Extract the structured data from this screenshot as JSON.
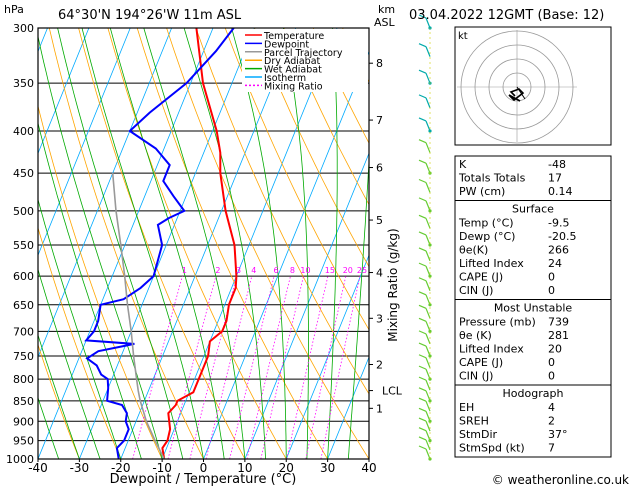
{
  "header": {
    "location": "64°30'N  194°26'W  11m  ASL",
    "date": "03.04.2022  12GMT  (Base: 12)",
    "hpa_label": "hPa",
    "km_label": "km",
    "asl_label": "ASL"
  },
  "legend": [
    {
      "label": "Temperature",
      "color": "#ff0000",
      "dash": ""
    },
    {
      "label": "Dewpoint",
      "color": "#0000ff",
      "dash": ""
    },
    {
      "label": "Parcel Trajectory",
      "color": "#999999",
      "dash": ""
    },
    {
      "label": "Dry Adiabat",
      "color": "#ffa500",
      "dash": ""
    },
    {
      "label": "Wet Adiabat",
      "color": "#00aa00",
      "dash": ""
    },
    {
      "label": "Isotherm",
      "color": "#00aaff",
      "dash": ""
    },
    {
      "label": "Mixing Ratio",
      "color": "#ff00ff",
      "dash": "2,2"
    }
  ],
  "chart_data": {
    "type": "line",
    "xlabel": "Dewpoint / Temperature (°C)",
    "ylabel": "Mixing Ratio (g/kg)",
    "x_ticks": [
      -40,
      -30,
      -20,
      -10,
      0,
      10,
      20,
      30,
      40
    ],
    "pressure_levels": [
      300,
      350,
      400,
      450,
      500,
      550,
      600,
      650,
      700,
      750,
      800,
      850,
      900,
      950,
      1000
    ],
    "km_ticks": [
      {
        "label": "8",
        "p": 331
      },
      {
        "label": "7",
        "p": 388
      },
      {
        "label": "6",
        "p": 443
      },
      {
        "label": "5",
        "p": 513
      },
      {
        "label": "4",
        "p": 594
      },
      {
        "label": "3",
        "p": 675
      },
      {
        "label": "2",
        "p": 768
      },
      {
        "label": "LCL",
        "p": 826
      },
      {
        "label": "1",
        "p": 868
      }
    ],
    "mixing_ratio_labels": [
      "1",
      "2",
      "3",
      "4",
      "6",
      "8",
      "10",
      "15",
      "20",
      "25"
    ],
    "series": [
      {
        "name": "Temperature",
        "color": "#ff0000",
        "points": [
          [
            1000,
            -9.5
          ],
          [
            970,
            -11
          ],
          [
            950,
            -10.5
          ],
          [
            920,
            -11
          ],
          [
            900,
            -12
          ],
          [
            880,
            -13
          ],
          [
            860,
            -12
          ],
          [
            850,
            -12
          ],
          [
            830,
            -9
          ],
          [
            800,
            -9
          ],
          [
            770,
            -9
          ],
          [
            750,
            -9
          ],
          [
            720,
            -10
          ],
          [
            700,
            -8
          ],
          [
            680,
            -8
          ],
          [
            650,
            -9
          ],
          [
            620,
            -9
          ],
          [
            600,
            -10
          ],
          [
            550,
            -13.5
          ],
          [
            500,
            -19
          ],
          [
            450,
            -24
          ],
          [
            425,
            -26
          ],
          [
            400,
            -29
          ],
          [
            350,
            -37
          ],
          [
            300,
            -44
          ]
        ]
      },
      {
        "name": "Dewpoint",
        "color": "#0000ff",
        "points": [
          [
            1000,
            -20.5
          ],
          [
            970,
            -22
          ],
          [
            950,
            -21
          ],
          [
            920,
            -21
          ],
          [
            900,
            -22.5
          ],
          [
            880,
            -23
          ],
          [
            860,
            -25
          ],
          [
            850,
            -29
          ],
          [
            820,
            -30
          ],
          [
            800,
            -31
          ],
          [
            790,
            -33
          ],
          [
            770,
            -35
          ],
          [
            755,
            -38
          ],
          [
            740,
            -36
          ],
          [
            725,
            -28
          ],
          [
            718,
            -40
          ],
          [
            700,
            -39
          ],
          [
            680,
            -39
          ],
          [
            650,
            -40
          ],
          [
            640,
            -35
          ],
          [
            620,
            -32
          ],
          [
            600,
            -30
          ],
          [
            550,
            -31
          ],
          [
            520,
            -34
          ],
          [
            510,
            -32
          ],
          [
            500,
            -29
          ],
          [
            480,
            -33
          ],
          [
            460,
            -37
          ],
          [
            440,
            -37
          ],
          [
            420,
            -42
          ],
          [
            400,
            -50
          ],
          [
            380,
            -47
          ],
          [
            350,
            -41
          ],
          [
            320,
            -37
          ],
          [
            300,
            -35
          ]
        ]
      },
      {
        "name": "Parcel Trajectory",
        "color": "#999999",
        "points": [
          [
            1000,
            -9.5
          ],
          [
            950,
            -13.5
          ],
          [
            900,
            -17.5
          ],
          [
            850,
            -21
          ],
          [
            826,
            -22.5
          ],
          [
            800,
            -24
          ],
          [
            750,
            -27
          ],
          [
            700,
            -30
          ],
          [
            650,
            -33.5
          ],
          [
            600,
            -37
          ],
          [
            550,
            -41
          ],
          [
            500,
            -45.5
          ],
          [
            450,
            -50
          ]
        ]
      }
    ]
  },
  "indices": {
    "rows1": [
      {
        "label": "K",
        "value": "-48"
      },
      {
        "label": "Totals Totals",
        "value": "17"
      },
      {
        "label": "PW (cm)",
        "value": "0.14"
      }
    ],
    "surface_title": "Surface",
    "surface": [
      {
        "label": "Temp (°C)",
        "value": "-9.5"
      },
      {
        "label": "Dewp (°C)",
        "value": "-20.5"
      },
      {
        "label": "θe(K)",
        "value": "266"
      },
      {
        "label": "Lifted Index",
        "value": "24"
      },
      {
        "label": "CAPE (J)",
        "value": "0"
      },
      {
        "label": "CIN (J)",
        "value": "0"
      }
    ],
    "mu_title": "Most Unstable",
    "mu": [
      {
        "label": "Pressure (mb)",
        "value": "739"
      },
      {
        "label": "θe (K)",
        "value": "281"
      },
      {
        "label": "Lifted Index",
        "value": "20"
      },
      {
        "label": "CAPE (J)",
        "value": "0"
      },
      {
        "label": "CIN (J)",
        "value": "0"
      }
    ],
    "hodo_title": "Hodograph",
    "hodo": [
      {
        "label": "EH",
        "value": "4"
      },
      {
        "label": "SREH",
        "value": "2"
      },
      {
        "label": "StmDir",
        "value": "37°"
      },
      {
        "label": "StmSpd (kt)",
        "value": "7"
      }
    ]
  },
  "hodograph": {
    "unit_label": "kt"
  },
  "footer": {
    "credit": "© weatheronline.co.uk"
  }
}
